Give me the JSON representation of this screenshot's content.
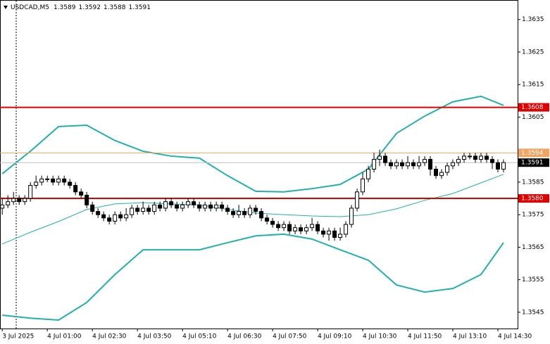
{
  "chart_data": {
    "type": "candlestick",
    "title": "USDCAD,M5",
    "ohlc": [
      1.3589,
      1.3592,
      1.3588,
      1.3591
    ],
    "xlim": [
      -0.4,
      91.5
    ],
    "xticks": [
      {
        "value": 0,
        "label": "3 Jul 2025"
      },
      {
        "value": 8,
        "label": "4 Jul 01:00"
      },
      {
        "value": 16,
        "label": "4 Jul 02:30"
      },
      {
        "value": 24,
        "label": "4 Jul 03:50"
      },
      {
        "value": 32,
        "label": "4 Jul 05:10"
      },
      {
        "value": 40,
        "label": "4 Jul 06:30"
      },
      {
        "value": 48,
        "label": "4 Jul 07:50"
      },
      {
        "value": 56,
        "label": "4 Jul 09:10"
      },
      {
        "value": 64,
        "label": "4 Jul 10:30"
      },
      {
        "value": 72,
        "label": "4 Jul 11:50"
      },
      {
        "value": 80,
        "label": "4 Jul 13:10"
      },
      {
        "value": 88,
        "label": "4 Jul 14:30"
      }
    ],
    "ylim": [
      1.354,
      1.3641
    ],
    "yticks": [
      1.3635,
      1.3625,
      1.3615,
      1.3605,
      1.3585,
      1.3575,
      1.3565,
      1.3555,
      1.3545
    ],
    "candles": {
      "open": [
        1.3577,
        1.3578,
        1.3579,
        1.358,
        1.3579,
        1.358,
        1.3584,
        1.3585,
        1.3586,
        1.3586,
        1.3585,
        1.3586,
        1.3585,
        1.3584,
        1.3582,
        1.3581,
        1.3578,
        1.3576,
        1.3575,
        1.3574,
        1.3573,
        1.3575,
        1.3574,
        1.3575,
        1.3577,
        1.3576,
        1.3577,
        1.3576,
        1.3578,
        1.3577,
        1.3579,
        1.3578,
        1.3577,
        1.3578,
        1.3579,
        1.3578,
        1.3577,
        1.3578,
        1.3577,
        1.3578,
        1.3577,
        1.3576,
        1.3575,
        1.3576,
        1.3575,
        1.3577,
        1.3576,
        1.3574,
        1.3573,
        1.3572,
        1.3571,
        1.3572,
        1.357,
        1.3571,
        1.357,
        1.3571,
        1.3572,
        1.357,
        1.3569,
        1.357,
        1.3568,
        1.3569,
        1.3572,
        1.3577,
        1.3582,
        1.3586,
        1.3589,
        1.3592,
        1.3593,
        1.3591,
        1.359,
        1.3591,
        1.359,
        1.3591,
        1.359,
        1.3591,
        1.3592,
        1.3589,
        1.3587,
        1.3588,
        1.359,
        1.3591,
        1.3592,
        1.3593,
        1.3593,
        1.3592,
        1.3593,
        1.3592,
        1.3591,
        1.3589
      ],
      "high": [
        1.358,
        1.3581,
        1.3582,
        1.3581,
        1.3581,
        1.3585,
        1.3587,
        1.3587,
        1.3587,
        1.3587,
        1.3587,
        1.3587,
        1.3586,
        1.3585,
        1.3583,
        1.3582,
        1.3579,
        1.3577,
        1.3576,
        1.3575,
        1.3576,
        1.3576,
        1.3577,
        1.3578,
        1.3578,
        1.3579,
        1.3578,
        1.3579,
        1.3579,
        1.358,
        1.358,
        1.3579,
        1.3579,
        1.358,
        1.358,
        1.3579,
        1.3579,
        1.3579,
        1.3579,
        1.3579,
        1.3578,
        1.3577,
        1.3578,
        1.3577,
        1.3578,
        1.3578,
        1.3577,
        1.3575,
        1.3574,
        1.3573,
        1.3573,
        1.3573,
        1.3572,
        1.3572,
        1.3572,
        1.3574,
        1.3573,
        1.3571,
        1.3571,
        1.3571,
        1.3571,
        1.3573,
        1.3578,
        1.3583,
        1.3588,
        1.359,
        1.3594,
        1.3595,
        1.3594,
        1.3592,
        1.3592,
        1.3592,
        1.3593,
        1.3592,
        1.3593,
        1.3593,
        1.3593,
        1.359,
        1.3589,
        1.3591,
        1.3592,
        1.3593,
        1.3594,
        1.3594,
        1.3594,
        1.3594,
        1.3594,
        1.3593,
        1.3592,
        1.3592
      ],
      "low": [
        1.3575,
        1.3577,
        1.3578,
        1.3578,
        1.3578,
        1.3579,
        1.3583,
        1.3584,
        1.3585,
        1.3584,
        1.3584,
        1.3584,
        1.3583,
        1.3581,
        1.358,
        1.3577,
        1.3575,
        1.3574,
        1.3573,
        1.3572,
        1.3572,
        1.3573,
        1.3573,
        1.3574,
        1.3575,
        1.3575,
        1.3575,
        1.3575,
        1.3576,
        1.3576,
        1.3577,
        1.3576,
        1.3576,
        1.3577,
        1.3577,
        1.3576,
        1.3576,
        1.3576,
        1.3576,
        1.3576,
        1.3575,
        1.3574,
        1.3574,
        1.3574,
        1.3574,
        1.3575,
        1.3573,
        1.3572,
        1.3571,
        1.357,
        1.357,
        1.3569,
        1.3569,
        1.3569,
        1.3569,
        1.357,
        1.3569,
        1.3568,
        1.3567,
        1.3567,
        1.3567,
        1.3568,
        1.3571,
        1.3576,
        1.3581,
        1.3585,
        1.3588,
        1.359,
        1.359,
        1.3589,
        1.3589,
        1.3589,
        1.3589,
        1.3589,
        1.3589,
        1.359,
        1.3587,
        1.3586,
        1.3586,
        1.3587,
        1.3589,
        1.359,
        1.3591,
        1.3592,
        1.3591,
        1.3591,
        1.3591,
        1.3589,
        1.3588,
        1.3588
      ],
      "close": [
        1.3578,
        1.3579,
        1.358,
        1.3579,
        1.358,
        1.3584,
        1.3585,
        1.3586,
        1.3586,
        1.3585,
        1.3586,
        1.3585,
        1.3584,
        1.3582,
        1.3581,
        1.3578,
        1.3576,
        1.3575,
        1.3574,
        1.3573,
        1.3575,
        1.3574,
        1.3575,
        1.3577,
        1.3576,
        1.3577,
        1.3576,
        1.3578,
        1.3577,
        1.3579,
        1.3578,
        1.3577,
        1.3578,
        1.3579,
        1.3578,
        1.3577,
        1.3578,
        1.3577,
        1.3578,
        1.3577,
        1.3576,
        1.3575,
        1.3576,
        1.3575,
        1.3577,
        1.3576,
        1.3574,
        1.3573,
        1.3572,
        1.3571,
        1.3572,
        1.357,
        1.3571,
        1.357,
        1.3571,
        1.3572,
        1.357,
        1.3569,
        1.357,
        1.3568,
        1.3569,
        1.3572,
        1.3577,
        1.3582,
        1.3586,
        1.3589,
        1.3592,
        1.3593,
        1.3591,
        1.359,
        1.3591,
        1.359,
        1.3591,
        1.359,
        1.3591,
        1.3592,
        1.3589,
        1.3587,
        1.3588,
        1.359,
        1.3591,
        1.3592,
        1.3593,
        1.3593,
        1.3592,
        1.3593,
        1.3592,
        1.3591,
        1.3589,
        1.3591
      ]
    },
    "bands": [
      {
        "color": "#20b2aa",
        "x": [
          0,
          5,
          10,
          15,
          20,
          25,
          30,
          35,
          40,
          45,
          50,
          55,
          60,
          65,
          70,
          75,
          80,
          85,
          89
        ],
        "values": [
          1.35876,
          1.35945,
          1.36021,
          1.36025,
          1.35978,
          1.35945,
          1.3593,
          1.35924,
          1.3587,
          1.35822,
          1.3582,
          1.3583,
          1.35843,
          1.3589,
          1.36,
          1.36053,
          1.36097,
          1.36114,
          1.36086
        ]
      },
      {
        "color": "#20b2aa",
        "x": [
          0,
          5,
          10,
          15,
          20,
          25,
          30,
          35,
          40,
          45,
          50,
          55,
          60,
          65,
          70,
          75,
          80,
          85,
          89
        ],
        "values": [
          1.3566,
          1.35696,
          1.35729,
          1.35766,
          1.35783,
          1.35787,
          1.35783,
          1.3578,
          1.35766,
          1.35755,
          1.3575,
          1.35746,
          1.35744,
          1.3575,
          1.35768,
          1.35794,
          1.35815,
          1.35848,
          1.35874
        ]
      },
      {
        "color": "#20b2aa",
        "x": [
          0,
          5,
          10,
          15,
          20,
          25,
          30,
          35,
          40,
          45,
          50,
          55,
          60,
          65,
          70,
          75,
          80,
          85,
          89
        ],
        "values": [
          1.35441,
          1.35432,
          1.35426,
          1.3548,
          1.35566,
          1.35642,
          1.35642,
          1.35642,
          1.35664,
          1.35685,
          1.3569,
          1.35675,
          1.35642,
          1.3561,
          1.35534,
          1.35512,
          1.35523,
          1.35566,
          1.35664
        ]
      }
    ],
    "levels": [
      {
        "value": 1.3608,
        "color": "#e00000"
      },
      {
        "value": 1.3594,
        "color": "#f4a460"
      },
      {
        "value": 1.3591,
        "color": "#c0c0c0"
      },
      {
        "value": 1.358,
        "label": "1.3580",
        "color": "#e00000"
      }
    ]
  }
}
